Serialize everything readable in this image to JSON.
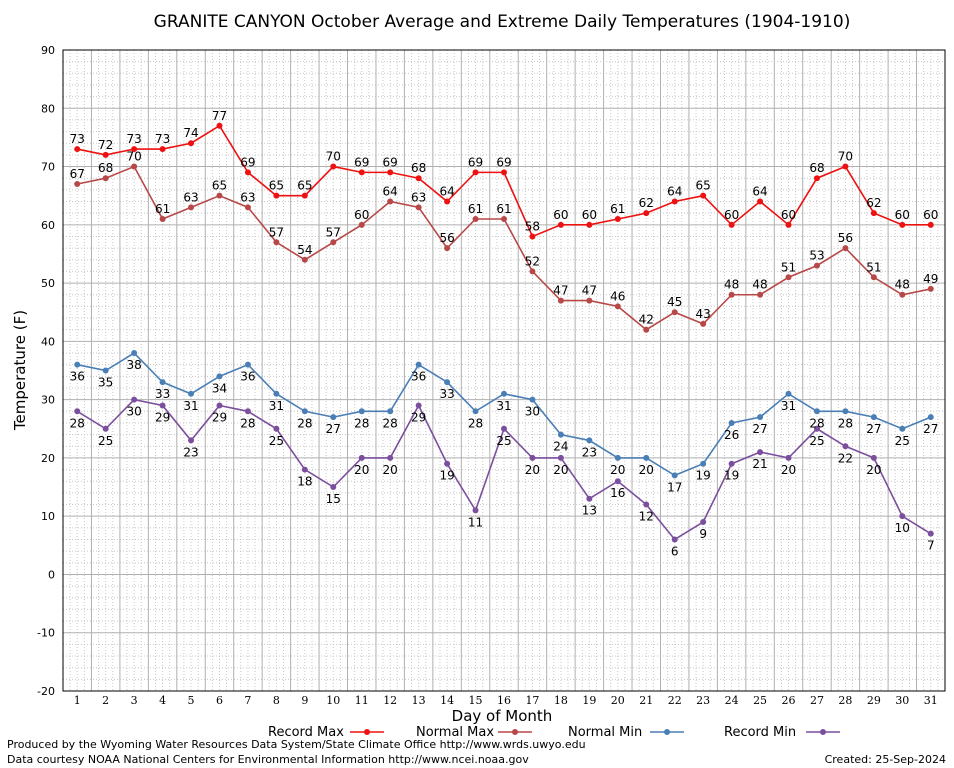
{
  "chart_data": {
    "type": "line",
    "title": "GRANITE CANYON October Average and Extreme Daily Temperatures (1904-1910)",
    "xlabel": "Day of Month",
    "ylabel": "Temperature (F)",
    "ylim": [
      -20,
      90
    ],
    "yticks": [
      -20,
      -10,
      0,
      10,
      20,
      30,
      40,
      50,
      60,
      70,
      80,
      90
    ],
    "x": [
      1,
      2,
      3,
      4,
      5,
      6,
      7,
      8,
      9,
      10,
      11,
      12,
      13,
      14,
      15,
      16,
      17,
      18,
      19,
      20,
      21,
      22,
      23,
      24,
      25,
      26,
      27,
      28,
      29,
      30,
      31
    ],
    "grid": true,
    "legend_position": "bottom",
    "series": [
      {
        "name": "Record Max",
        "color": "#ee1111",
        "values": [
          73,
          72,
          73,
          73,
          74,
          77,
          69,
          65,
          65,
          70,
          69,
          69,
          68,
          64,
          69,
          69,
          58,
          60,
          60,
          61,
          62,
          64,
          65,
          60,
          64,
          60,
          68,
          70,
          62,
          60,
          60
        ]
      },
      {
        "name": "Normal Max",
        "color": "#b84848",
        "values": [
          67,
          68,
          70,
          61,
          63,
          65,
          63,
          57,
          54,
          57,
          60,
          64,
          63,
          56,
          61,
          61,
          52,
          47,
          47,
          46,
          42,
          45,
          43,
          48,
          48,
          51,
          53,
          56,
          51,
          48,
          49
        ]
      },
      {
        "name": "Normal Min",
        "color": "#4a7fb6",
        "values": [
          36,
          35,
          38,
          33,
          31,
          34,
          36,
          31,
          28,
          27,
          28,
          28,
          36,
          33,
          28,
          31,
          30,
          24,
          23,
          20,
          20,
          17,
          19,
          26,
          27,
          31,
          28,
          28,
          27,
          25,
          27
        ]
      },
      {
        "name": "Record Min",
        "color": "#7b4f9d",
        "values": [
          28,
          25,
          30,
          29,
          23,
          29,
          28,
          25,
          18,
          15,
          20,
          20,
          29,
          19,
          11,
          25,
          20,
          20,
          13,
          16,
          12,
          6,
          9,
          19,
          21,
          20,
          25,
          22,
          20,
          10,
          7
        ]
      }
    ]
  },
  "footer": {
    "produced_by": "Produced by the Wyoming Water Resources Data System/State Climate Office http://www.wrds.uwyo.edu",
    "courtesy": "Data courtesy NOAA National Centers for Environmental Information http://www.ncei.noaa.gov",
    "created": "Created:  25-Sep-2024"
  }
}
